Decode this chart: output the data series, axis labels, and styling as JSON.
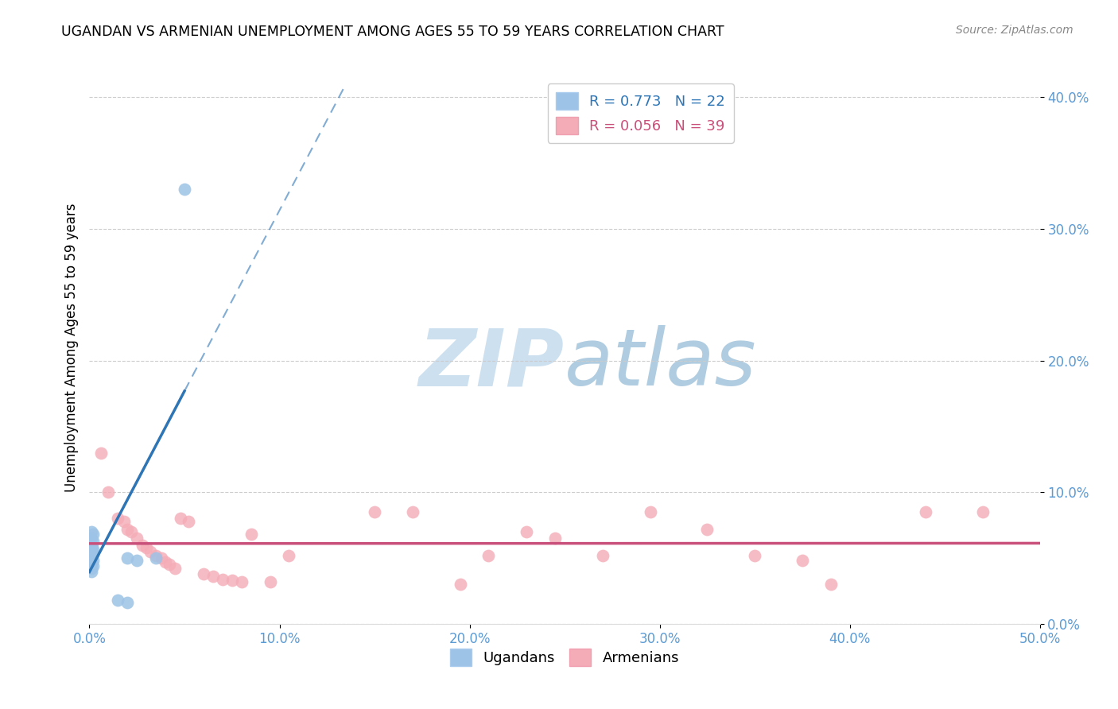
{
  "title": "UGANDAN VS ARMENIAN UNEMPLOYMENT AMONG AGES 55 TO 59 YEARS CORRELATION CHART",
  "source": "Source: ZipAtlas.com",
  "ylabel": "Unemployment Among Ages 55 to 59 years",
  "xlim": [
    0,
    0.5
  ],
  "ylim": [
    0,
    0.42
  ],
  "xticks": [
    0.0,
    0.1,
    0.2,
    0.3,
    0.4,
    0.5
  ],
  "yticks": [
    0.0,
    0.1,
    0.2,
    0.3,
    0.4
  ],
  "legend_ugandan": "R = 0.773   N = 22",
  "legend_armenian": "R = 0.056   N = 39",
  "ugandan_color": "#9dc3e6",
  "armenian_color": "#f4acb7",
  "ugandan_line_color": "#2e75b6",
  "armenian_line_color": "#c9507a",
  "tick_color": "#5b9bd5",
  "ugandan_scatter": [
    [
      0.001,
      0.07
    ],
    [
      0.002,
      0.068
    ],
    [
      0.001,
      0.065
    ],
    [
      0.002,
      0.063
    ],
    [
      0.001,
      0.06
    ],
    [
      0.001,
      0.058
    ],
    [
      0.002,
      0.057
    ],
    [
      0.001,
      0.055
    ],
    [
      0.002,
      0.053
    ],
    [
      0.001,
      0.052
    ],
    [
      0.001,
      0.05
    ],
    [
      0.002,
      0.048
    ],
    [
      0.001,
      0.046
    ],
    [
      0.002,
      0.044
    ],
    [
      0.001,
      0.042
    ],
    [
      0.001,
      0.04
    ],
    [
      0.02,
      0.05
    ],
    [
      0.025,
      0.048
    ],
    [
      0.035,
      0.05
    ],
    [
      0.015,
      0.018
    ],
    [
      0.02,
      0.016
    ],
    [
      0.05,
      0.33
    ]
  ],
  "armenian_scatter": [
    [
      0.006,
      0.13
    ],
    [
      0.01,
      0.1
    ],
    [
      0.015,
      0.08
    ],
    [
      0.018,
      0.078
    ],
    [
      0.02,
      0.072
    ],
    [
      0.022,
      0.07
    ],
    [
      0.025,
      0.065
    ],
    [
      0.028,
      0.06
    ],
    [
      0.03,
      0.058
    ],
    [
      0.032,
      0.055
    ],
    [
      0.035,
      0.052
    ],
    [
      0.038,
      0.05
    ],
    [
      0.04,
      0.047
    ],
    [
      0.042,
      0.045
    ],
    [
      0.045,
      0.042
    ],
    [
      0.048,
      0.08
    ],
    [
      0.052,
      0.078
    ],
    [
      0.06,
      0.038
    ],
    [
      0.065,
      0.036
    ],
    [
      0.07,
      0.034
    ],
    [
      0.075,
      0.033
    ],
    [
      0.08,
      0.032
    ],
    [
      0.085,
      0.068
    ],
    [
      0.095,
      0.032
    ],
    [
      0.105,
      0.052
    ],
    [
      0.15,
      0.085
    ],
    [
      0.17,
      0.085
    ],
    [
      0.195,
      0.03
    ],
    [
      0.21,
      0.052
    ],
    [
      0.23,
      0.07
    ],
    [
      0.245,
      0.065
    ],
    [
      0.27,
      0.052
    ],
    [
      0.295,
      0.085
    ],
    [
      0.325,
      0.072
    ],
    [
      0.35,
      0.052
    ],
    [
      0.375,
      0.048
    ],
    [
      0.39,
      0.03
    ],
    [
      0.44,
      0.085
    ],
    [
      0.47,
      0.085
    ]
  ],
  "background_color": "#ffffff",
  "grid_color": "#cccccc",
  "watermark_zip_color": "#c5dff0",
  "watermark_atlas_color": "#b8d4e8"
}
